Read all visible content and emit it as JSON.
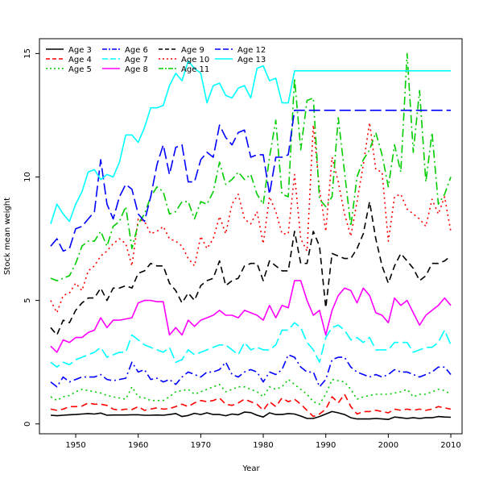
{
  "chart_data": {
    "type": "line",
    "title": "",
    "xlabel": "Year",
    "ylabel": "Stock mean weight",
    "xlim": [
      1944.2,
      2011.8
    ],
    "ylim": [
      -0.4,
      15.6
    ],
    "x_ticks": [
      1950,
      1960,
      1970,
      1980,
      1990,
      2000,
      2010
    ],
    "y_ticks": [
      0,
      5,
      10,
      15
    ],
    "grid": false,
    "legend_position": "top-left",
    "x": [
      1946,
      1947,
      1948,
      1949,
      1950,
      1951,
      1952,
      1953,
      1954,
      1955,
      1956,
      1957,
      1958,
      1959,
      1960,
      1961,
      1962,
      1963,
      1964,
      1965,
      1966,
      1967,
      1968,
      1969,
      1970,
      1971,
      1972,
      1973,
      1974,
      1975,
      1976,
      1977,
      1978,
      1979,
      1980,
      1981,
      1982,
      1983,
      1984,
      1985,
      1986,
      1987,
      1988,
      1989,
      1990,
      1991,
      1992,
      1993,
      1994,
      1995,
      1996,
      1997,
      1998,
      1999,
      2000,
      2001,
      2002,
      2003,
      2004,
      2005,
      2006,
      2007,
      2008,
      2009,
      2010
    ],
    "series": [
      {
        "name": "Age 3",
        "color": "#000000",
        "dash": "solid",
        "values": [
          0.35,
          0.33,
          0.35,
          0.37,
          0.38,
          0.4,
          0.42,
          0.4,
          0.44,
          0.35,
          0.36,
          0.36,
          0.36,
          0.37,
          0.37,
          0.35,
          0.35,
          0.36,
          0.35,
          0.38,
          0.42,
          0.3,
          0.34,
          0.43,
          0.38,
          0.45,
          0.38,
          0.38,
          0.33,
          0.4,
          0.37,
          0.48,
          0.46,
          0.35,
          0.28,
          0.45,
          0.38,
          0.38,
          0.42,
          0.4,
          0.32,
          0.22,
          0.22,
          0.3,
          0.4,
          0.5,
          0.45,
          0.38,
          0.25,
          0.2,
          0.2,
          0.2,
          0.22,
          0.2,
          0.18,
          0.28,
          0.25,
          0.22,
          0.25,
          0.22,
          0.25,
          0.25,
          0.3,
          0.28,
          0.27
        ]
      },
      {
        "name": "Age 4",
        "color": "#ff0000",
        "dash": "8,5",
        "values": [
          0.6,
          0.55,
          0.6,
          0.7,
          0.7,
          0.72,
          0.85,
          0.8,
          0.8,
          0.75,
          0.6,
          0.55,
          0.6,
          0.58,
          0.7,
          0.55,
          0.6,
          0.65,
          0.6,
          0.62,
          0.7,
          0.8,
          0.7,
          0.85,
          0.95,
          0.9,
          0.95,
          1.05,
          0.8,
          0.75,
          0.85,
          1.0,
          0.9,
          0.8,
          0.55,
          0.9,
          0.7,
          1.05,
          0.9,
          1.0,
          0.8,
          0.55,
          0.3,
          0.4,
          0.6,
          1.1,
          0.85,
          1.2,
          0.7,
          0.4,
          0.5,
          0.5,
          0.55,
          0.5,
          0.45,
          0.6,
          0.55,
          0.6,
          0.55,
          0.6,
          0.55,
          0.6,
          0.7,
          0.65,
          0.6
        ]
      },
      {
        "name": "Age 5",
        "color": "#00cd00",
        "dash": "2,4",
        "values": [
          1.1,
          0.95,
          1.1,
          1.15,
          1.3,
          1.4,
          1.35,
          1.3,
          1.25,
          1.15,
          1.1,
          1.05,
          1.0,
          1.5,
          1.1,
          1.05,
          0.95,
          0.95,
          0.95,
          1.1,
          1.3,
          1.35,
          1.4,
          1.2,
          1.3,
          1.4,
          1.5,
          1.6,
          1.3,
          1.4,
          1.5,
          1.5,
          1.4,
          1.3,
          1.1,
          1.5,
          1.4,
          1.5,
          1.8,
          1.6,
          1.4,
          1.2,
          0.9,
          0.8,
          1.2,
          1.8,
          1.75,
          1.7,
          1.4,
          1.0,
          1.1,
          1.15,
          1.2,
          1.2,
          1.2,
          1.25,
          1.3,
          1.4,
          1.1,
          1.2,
          1.2,
          1.3,
          1.4,
          1.35,
          1.2
        ]
      },
      {
        "name": "Age 6",
        "color": "#0000ff",
        "dash": "10,4,2,4",
        "values": [
          1.7,
          1.5,
          1.9,
          1.7,
          1.8,
          1.9,
          1.9,
          1.9,
          2.0,
          1.8,
          1.75,
          1.8,
          1.85,
          2.5,
          2.1,
          2.2,
          1.8,
          1.85,
          1.7,
          1.8,
          1.6,
          1.9,
          2.1,
          2.0,
          1.9,
          2.1,
          2.1,
          2.2,
          2.5,
          2.0,
          1.9,
          2.1,
          2.2,
          2.1,
          1.7,
          2.1,
          2.0,
          2.2,
          2.8,
          2.7,
          2.3,
          2.1,
          2.1,
          1.5,
          1.8,
          2.6,
          2.7,
          2.7,
          2.3,
          2.1,
          2.0,
          1.9,
          2.0,
          1.9,
          2.0,
          2.2,
          2.1,
          2.1,
          2.0,
          1.9,
          2.0,
          2.1,
          2.3,
          2.3,
          2.0
        ]
      },
      {
        "name": "Age 7",
        "color": "#00ffff",
        "dash": "14,5",
        "values": [
          2.5,
          2.3,
          2.5,
          2.4,
          2.6,
          2.7,
          2.8,
          2.9,
          3.1,
          2.7,
          2.8,
          2.9,
          2.9,
          3.6,
          3.4,
          3.2,
          3.1,
          3.0,
          2.9,
          3.1,
          2.5,
          2.6,
          3.0,
          2.8,
          2.9,
          3.0,
          3.1,
          3.2,
          3.2,
          3.0,
          2.8,
          3.3,
          3.0,
          3.1,
          3.0,
          3.0,
          3.2,
          3.8,
          3.8,
          4.1,
          3.9,
          3.3,
          3.0,
          2.5,
          3.5,
          3.9,
          4.0,
          3.8,
          3.4,
          3.5,
          3.3,
          3.5,
          3.0,
          3.0,
          3.0,
          3.3,
          3.3,
          3.3,
          2.9,
          3.0,
          3.1,
          3.1,
          3.3,
          3.8,
          3.2
        ]
      },
      {
        "name": "Age 8",
        "color": "#ff00ff",
        "dash": "solid",
        "values": [
          3.15,
          2.9,
          3.4,
          3.3,
          3.5,
          3.5,
          3.7,
          3.8,
          4.3,
          3.9,
          4.2,
          4.2,
          4.25,
          4.3,
          4.9,
          5.0,
          5.0,
          4.95,
          4.95,
          3.6,
          3.9,
          3.6,
          4.2,
          3.95,
          4.2,
          4.3,
          4.4,
          4.6,
          4.4,
          4.4,
          4.3,
          4.6,
          4.5,
          4.4,
          4.2,
          4.8,
          4.3,
          4.8,
          4.7,
          5.8,
          5.8,
          5.0,
          4.4,
          4.6,
          3.6,
          4.6,
          5.2,
          5.5,
          5.4,
          4.9,
          5.5,
          5.2,
          4.5,
          4.4,
          4.1,
          5.1,
          4.8,
          5.0,
          4.5,
          4.0,
          4.4,
          4.6,
          4.8,
          5.1,
          4.8
        ]
      },
      {
        "name": "Age 9",
        "color": "#000000",
        "dash": "8,5",
        "values": [
          3.9,
          3.6,
          4.2,
          4.1,
          4.6,
          4.9,
          5.1,
          5.1,
          5.5,
          5.0,
          5.5,
          5.5,
          5.6,
          5.5,
          6.1,
          6.2,
          6.5,
          6.4,
          6.4,
          5.7,
          5.4,
          4.9,
          5.3,
          5.0,
          5.6,
          5.8,
          5.9,
          6.6,
          5.6,
          5.8,
          5.9,
          6.4,
          6.5,
          6.5,
          5.8,
          6.6,
          6.4,
          6.2,
          6.2,
          7.8,
          6.5,
          6.5,
          7.8,
          7.2,
          4.7,
          6.9,
          6.8,
          6.7,
          6.7,
          7.1,
          7.7,
          9.0,
          7.5,
          6.4,
          5.7,
          6.4,
          6.9,
          6.6,
          6.3,
          5.8,
          6.0,
          6.5,
          6.5,
          6.6,
          6.8
        ]
      },
      {
        "name": "Age 10",
        "color": "#ff0000",
        "dash": "2,4",
        "values": [
          5.0,
          4.5,
          5.2,
          5.3,
          5.7,
          5.4,
          6.2,
          6.4,
          6.8,
          7.0,
          7.3,
          7.5,
          7.3,
          6.4,
          8.3,
          8.2,
          7.7,
          7.8,
          8.0,
          7.5,
          7.4,
          7.2,
          6.7,
          6.4,
          7.6,
          7.1,
          7.5,
          8.4,
          7.7,
          8.9,
          9.3,
          8.3,
          8.1,
          8.6,
          7.3,
          9.2,
          8.6,
          7.7,
          7.7,
          10.1,
          7.5,
          7.0,
          12.1,
          9.5,
          7.8,
          10.8,
          9.8,
          8.5,
          7.6,
          9.0,
          10.5,
          12.2,
          10.3,
          10.2,
          7.4,
          9.2,
          9.3,
          8.7,
          8.5,
          8.3,
          8.0,
          9.1,
          8.5,
          9.2,
          7.8
        ]
      },
      {
        "name": "Age 11",
        "color": "#00cd00",
        "dash": "10,4,2,4",
        "values": [
          5.9,
          5.8,
          5.9,
          6.0,
          6.5,
          7.2,
          7.4,
          7.4,
          7.8,
          7.2,
          8.0,
          8.2,
          8.8,
          7.1,
          8.1,
          8.5,
          9.2,
          9.6,
          9.4,
          8.5,
          8.6,
          9.0,
          9.0,
          8.3,
          9.0,
          8.9,
          9.4,
          10.6,
          9.7,
          9.9,
          10.2,
          9.9,
          10.1,
          9.3,
          8.9,
          10.8,
          12.3,
          9.3,
          9.2,
          14.0,
          11.1,
          13.1,
          13.2,
          9.1,
          8.8,
          9.2,
          12.4,
          10.2,
          8.0,
          10.0,
          10.7,
          11.1,
          11.8,
          10.9,
          9.6,
          11.3,
          10.2,
          15.0,
          11.0,
          13.5,
          9.8,
          11.8,
          8.9,
          9.3,
          10.0
        ]
      },
      {
        "name": "Age 12",
        "color": "#0000ff",
        "dash": "14,5",
        "values": [
          7.2,
          7.5,
          7.0,
          7.1,
          7.9,
          8.0,
          8.3,
          8.6,
          10.7,
          8.9,
          8.3,
          9.2,
          9.7,
          9.5,
          8.5,
          8.2,
          9.2,
          10.5,
          11.3,
          10.1,
          11.2,
          11.3,
          9.8,
          9.8,
          10.7,
          11.0,
          10.8,
          12.1,
          11.6,
          11.3,
          11.8,
          11.9,
          10.8,
          10.9,
          10.9,
          9.3,
          10.8,
          10.8,
          10.9,
          12.7,
          12.7,
          12.7,
          12.7,
          12.7,
          12.7,
          12.7,
          12.7,
          12.7,
          12.7,
          12.7,
          12.7,
          12.7,
          12.7,
          12.7,
          12.7,
          12.7,
          12.7,
          12.7,
          12.7,
          12.7,
          12.7,
          12.7,
          12.7,
          12.7,
          12.7
        ]
      },
      {
        "name": "Age 13",
        "color": "#00ffff",
        "dash": "solid",
        "values": [
          8.1,
          8.9,
          8.5,
          8.2,
          8.9,
          9.4,
          10.2,
          10.3,
          9.9,
          10.1,
          10.0,
          10.6,
          11.7,
          11.7,
          11.4,
          12.0,
          12.8,
          12.8,
          12.9,
          13.7,
          14.2,
          13.9,
          14.7,
          14.4,
          14.2,
          13.0,
          13.7,
          13.8,
          13.3,
          13.2,
          13.6,
          13.7,
          13.2,
          14.4,
          14.5,
          13.9,
          14.0,
          13.0,
          13.0,
          14.3,
          14.3,
          14.3,
          14.3,
          14.3,
          14.3,
          14.3,
          14.3,
          14.3,
          14.3,
          14.3,
          14.3,
          14.3,
          14.3,
          14.3,
          14.3,
          14.3,
          14.3,
          14.3,
          14.3,
          14.3,
          14.3,
          14.3,
          14.3,
          14.3,
          14.3
        ]
      }
    ]
  }
}
